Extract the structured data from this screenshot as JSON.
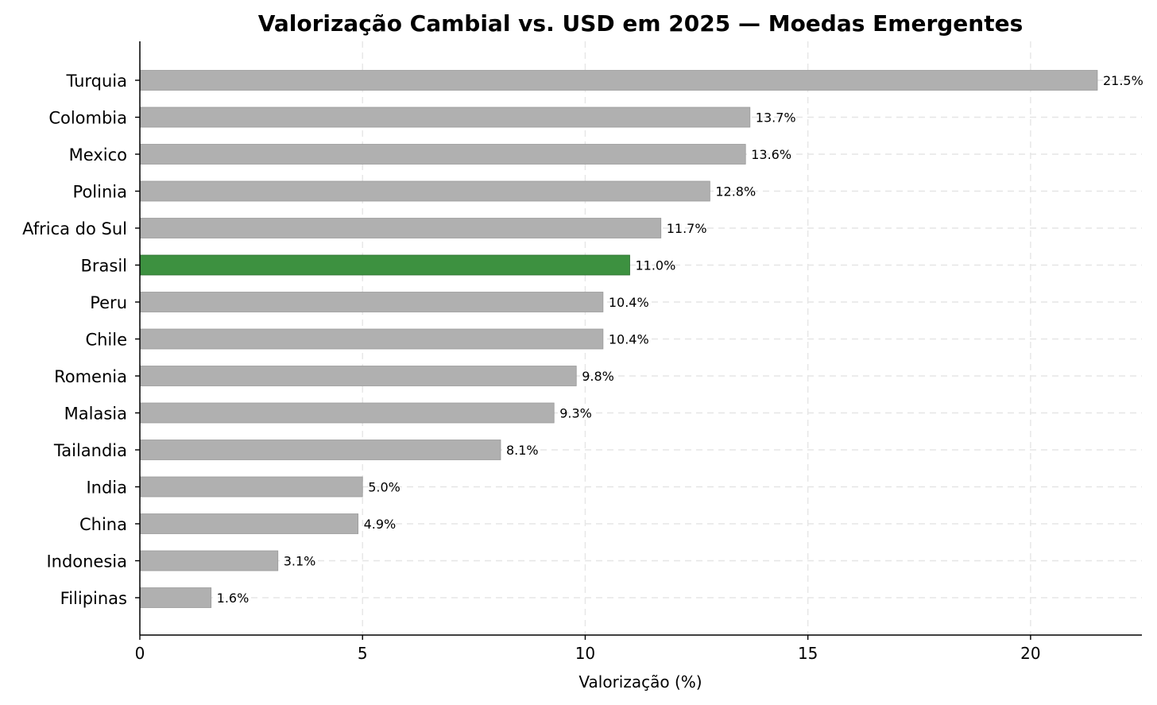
{
  "chart_data": {
    "type": "bar",
    "orientation": "horizontal",
    "title": "Valorização Cambial vs. USD em 2025 — Moedas Emergentes",
    "xlabel": "Valorização (%)",
    "ylabel": "",
    "xlim": [
      0,
      22.5
    ],
    "xticks": [
      0,
      5,
      10,
      15,
      20
    ],
    "grid": true,
    "categories": [
      "Turquia",
      "Colombia",
      "Mexico",
      "Polinia",
      "Africa do Sul",
      "Brasil",
      "Peru",
      "Chile",
      "Romenia",
      "Malasia",
      "Tailandia",
      "India",
      "China",
      "Indonesia",
      "Filipinas"
    ],
    "values": [
      21.5,
      13.7,
      13.6,
      12.8,
      11.7,
      11.0,
      10.4,
      10.4,
      9.8,
      9.3,
      8.1,
      5.0,
      4.9,
      3.1,
      1.6
    ],
    "value_labels": [
      "21.5%",
      "13.7%",
      "13.6%",
      "12.8%",
      "11.7%",
      "11.0%",
      "10.4%",
      "10.4%",
      "9.8%",
      "9.3%",
      "8.1%",
      "5.0%",
      "4.9%",
      "3.1%",
      "1.6%"
    ],
    "highlight": "Brasil",
    "colors": {
      "default_bar": "#b0b0b0",
      "default_edge": "#9a9a9a",
      "highlight_bar": "#3d9140",
      "highlight_edge": "#2a6b2d"
    }
  }
}
